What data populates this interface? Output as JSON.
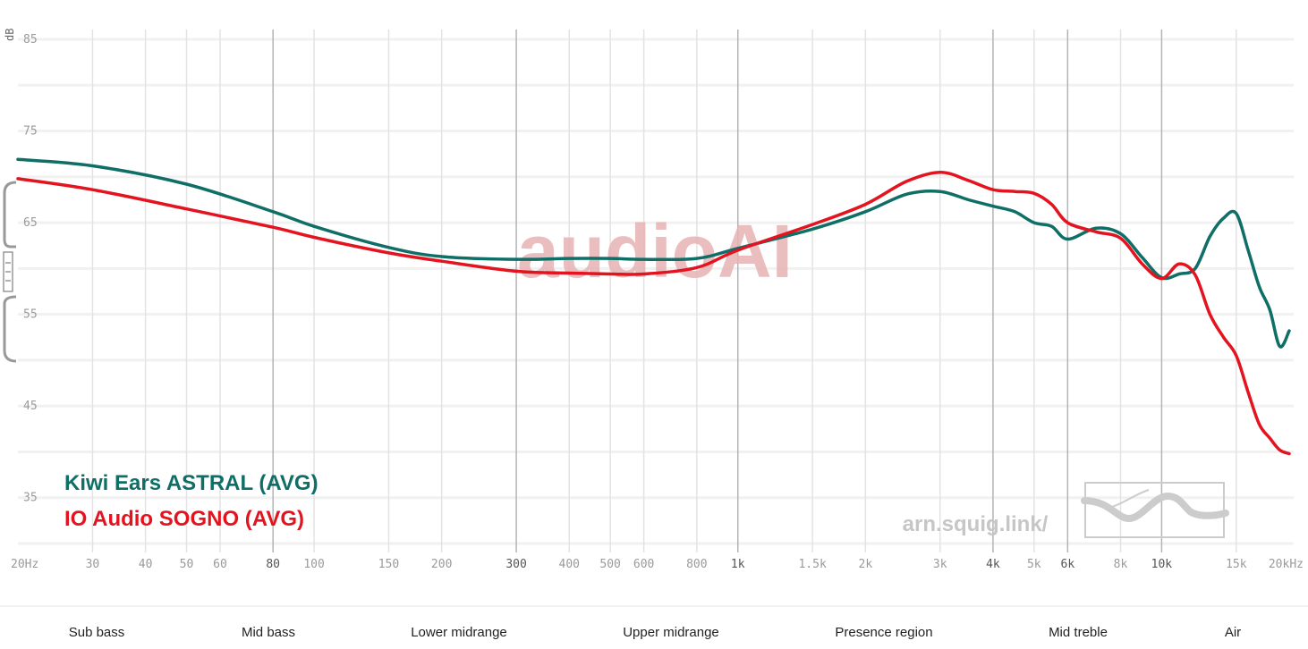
{
  "chart_data": {
    "type": "line",
    "ylabel": "dB",
    "ylim": [
      30,
      85
    ],
    "yticks": [
      "85",
      "75",
      "65",
      "55",
      "45",
      "35"
    ],
    "x_scale": "log",
    "xlim_hz": [
      20,
      20000
    ],
    "x_ticks": [
      {
        "hz": 20,
        "label": "20Hz"
      },
      {
        "hz": 30,
        "label": "30"
      },
      {
        "hz": 40,
        "label": "40"
      },
      {
        "hz": 50,
        "label": "50"
      },
      {
        "hz": 60,
        "label": "60"
      },
      {
        "hz": 80,
        "label": "80"
      },
      {
        "hz": 100,
        "label": "100"
      },
      {
        "hz": 150,
        "label": "150"
      },
      {
        "hz": 200,
        "label": "200"
      },
      {
        "hz": 300,
        "label": "300"
      },
      {
        "hz": 400,
        "label": "400"
      },
      {
        "hz": 500,
        "label": "500"
      },
      {
        "hz": 600,
        "label": "600"
      },
      {
        "hz": 800,
        "label": "800"
      },
      {
        "hz": 1000,
        "label": "1k"
      },
      {
        "hz": 1500,
        "label": "1.5k"
      },
      {
        "hz": 2000,
        "label": "2k"
      },
      {
        "hz": 3000,
        "label": "3k"
      },
      {
        "hz": 4000,
        "label": "4k"
      },
      {
        "hz": 5000,
        "label": "5k"
      },
      {
        "hz": 6000,
        "label": "6k"
      },
      {
        "hz": 8000,
        "label": "8k"
      },
      {
        "hz": 10000,
        "label": "10k"
      },
      {
        "hz": 15000,
        "label": "15k"
      },
      {
        "hz": 20000,
        "label": "20kHz"
      }
    ],
    "major_grid_hz": [
      80,
      300,
      1000,
      4000,
      6000,
      10000
    ],
    "series": [
      {
        "name": "Kiwi Ears ASTRAL (AVG)",
        "color": "#0f6e66",
        "points": [
          [
            20,
            71.9
          ],
          [
            30,
            71.2
          ],
          [
            50,
            69.2
          ],
          [
            80,
            66.2
          ],
          [
            100,
            64.6
          ],
          [
            150,
            62.3
          ],
          [
            200,
            61.3
          ],
          [
            300,
            61.0
          ],
          [
            400,
            61.1
          ],
          [
            500,
            61.1
          ],
          [
            600,
            61.0
          ],
          [
            800,
            61.1
          ],
          [
            1000,
            62.2
          ],
          [
            1500,
            64.3
          ],
          [
            2000,
            66.2
          ],
          [
            2500,
            68.1
          ],
          [
            3000,
            68.4
          ],
          [
            3500,
            67.5
          ],
          [
            4000,
            66.8
          ],
          [
            4500,
            66.2
          ],
          [
            5000,
            65.0
          ],
          [
            5500,
            64.6
          ],
          [
            6000,
            63.2
          ],
          [
            7000,
            64.4
          ],
          [
            8000,
            63.8
          ],
          [
            9000,
            61.2
          ],
          [
            10000,
            59.0
          ],
          [
            11000,
            59.4
          ],
          [
            12000,
            60.0
          ],
          [
            13000,
            63.5
          ],
          [
            14000,
            65.5
          ],
          [
            15000,
            66.0
          ],
          [
            16000,
            62.0
          ],
          [
            17000,
            58.0
          ],
          [
            18000,
            55.5
          ],
          [
            19000,
            51.5
          ],
          [
            20000,
            53.2
          ]
        ]
      },
      {
        "name": "IO Audio SOGNO (AVG)",
        "color": "#e3131f",
        "points": [
          [
            20,
            69.8
          ],
          [
            30,
            68.6
          ],
          [
            50,
            66.5
          ],
          [
            80,
            64.5
          ],
          [
            100,
            63.4
          ],
          [
            150,
            61.7
          ],
          [
            200,
            60.8
          ],
          [
            300,
            59.7
          ],
          [
            400,
            59.5
          ],
          [
            500,
            59.4
          ],
          [
            600,
            59.4
          ],
          [
            800,
            60.1
          ],
          [
            1000,
            62.0
          ],
          [
            1500,
            64.8
          ],
          [
            2000,
            67.0
          ],
          [
            2500,
            69.5
          ],
          [
            3000,
            70.5
          ],
          [
            3500,
            69.6
          ],
          [
            4000,
            68.6
          ],
          [
            4500,
            68.4
          ],
          [
            5000,
            68.2
          ],
          [
            5500,
            67.0
          ],
          [
            6000,
            65.0
          ],
          [
            7000,
            64.0
          ],
          [
            8000,
            63.3
          ],
          [
            9000,
            60.5
          ],
          [
            10000,
            58.9
          ],
          [
            11000,
            60.5
          ],
          [
            12000,
            59.3
          ],
          [
            13000,
            55.0
          ],
          [
            14000,
            52.5
          ],
          [
            15000,
            50.5
          ],
          [
            16000,
            46.5
          ],
          [
            17000,
            43.0
          ],
          [
            18000,
            41.5
          ],
          [
            19000,
            40.2
          ],
          [
            20000,
            39.8
          ]
        ]
      }
    ],
    "regions": [
      {
        "label": "Sub bass",
        "from_hz": 20,
        "to_hz": 60
      },
      {
        "label": "Mid bass",
        "from_hz": 60,
        "to_hz": 250
      },
      {
        "label": "Lower midrange",
        "from_hz": 250,
        "to_hz": 500
      },
      {
        "label": "Upper midrange",
        "from_hz": 500,
        "to_hz": 2000
      },
      {
        "label": "Presence region",
        "from_hz": 2000,
        "to_hz": 4000
      },
      {
        "label": "Mid treble",
        "from_hz": 4000,
        "to_hz": 10000
      },
      {
        "label": "Air",
        "from_hz": 10000,
        "to_hz": 20000
      }
    ],
    "legend_position": "bottom-left",
    "grid": true
  },
  "watermark": "audioAI",
  "site_label": "arn.squig.link/"
}
